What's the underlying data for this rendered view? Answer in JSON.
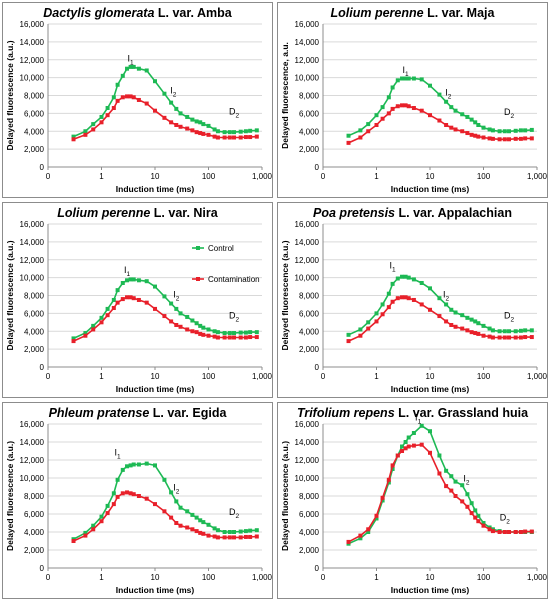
{
  "figure": {
    "legend": {
      "control": "Control",
      "contamination": "Contamination"
    }
  },
  "colors": {
    "control": "#1db954",
    "contamination": "#e8202a",
    "grid": "#d9d9d9",
    "axis": "#8c8c8c",
    "border": "#8c8c8c"
  },
  "chart_data": [
    {
      "type": "line",
      "title_italic": "Dactylis glomerata",
      "title_rest": " L. var. Amba",
      "xlabel": "Induction time (ms)",
      "ylabel": "Delayed fluorescence (a.u.)",
      "x_scale": "log",
      "xlim": [
        0.1,
        1000
      ],
      "ylim": [
        0,
        16000
      ],
      "x_ticks": [
        "0",
        "1",
        "10",
        "100",
        "1,000"
      ],
      "y_ticks": [
        "0",
        "2,000",
        "4,000",
        "6,000",
        "8,000",
        "10,000",
        "12,000",
        "14,000",
        "16,000"
      ],
      "x": [
        0.3,
        0.5,
        0.7,
        1,
        1.3,
        1.7,
        2,
        2.5,
        3,
        3.5,
        4,
        5,
        7,
        10,
        15,
        20,
        25,
        30,
        40,
        50,
        60,
        70,
        80,
        100,
        130,
        150,
        200,
        250,
        300,
        400,
        500,
        600,
        800
      ],
      "series": [
        {
          "name": "Control",
          "values": [
            3400,
            4000,
            4800,
            5600,
            6600,
            7800,
            9200,
            10200,
            11000,
            11200,
            11200,
            11000,
            10800,
            9600,
            8200,
            7200,
            6500,
            6000,
            5600,
            5300,
            5100,
            5000,
            4800,
            4600,
            4200,
            4000,
            3900,
            3900,
            3900,
            3950,
            4000,
            4050,
            4100
          ]
        },
        {
          "name": "Contamination",
          "values": [
            3100,
            3600,
            4200,
            5000,
            5800,
            6600,
            7400,
            7800,
            7900,
            7900,
            7800,
            7500,
            7100,
            6300,
            5500,
            5000,
            4700,
            4500,
            4300,
            4100,
            3900,
            3800,
            3700,
            3600,
            3400,
            3300,
            3300,
            3300,
            3300,
            3300,
            3350,
            3350,
            3400
          ]
        }
      ],
      "annotations": [
        {
          "base": "I",
          "sub": "1",
          "x": 3.5,
          "y": 11800
        },
        {
          "base": "I",
          "sub": "2",
          "x": 22,
          "y": 8200
        },
        {
          "base": "D",
          "sub": "2",
          "x": 300,
          "y": 5900
        }
      ]
    },
    {
      "type": "line",
      "title_italic": "Lolium perenne",
      "title_rest": " L. var. Maja",
      "xlabel": "Induction time (ms)",
      "ylabel": "Delayed fluorescence, a.u.",
      "x_scale": "log",
      "xlim": [
        0.1,
        1000
      ],
      "ylim": [
        0,
        16000
      ],
      "x_ticks": [
        "0",
        "1",
        "10",
        "100",
        "1,000"
      ],
      "y_ticks": [
        "0",
        "2,000",
        "4,000",
        "6,000",
        "8,000",
        "10,000",
        "12,000",
        "14,000",
        "16,000"
      ],
      "x": [
        0.3,
        0.5,
        0.7,
        1,
        1.3,
        1.7,
        2,
        2.5,
        3,
        3.5,
        4,
        5,
        7,
        10,
        15,
        20,
        25,
        30,
        40,
        50,
        60,
        70,
        80,
        100,
        130,
        150,
        200,
        250,
        300,
        400,
        500,
        600,
        800
      ],
      "series": [
        {
          "name": "Control",
          "values": [
            3500,
            4100,
            4800,
            5800,
            6700,
            7800,
            8900,
            9700,
            9900,
            9900,
            9900,
            9900,
            9800,
            9100,
            8100,
            7300,
            6700,
            6300,
            5900,
            5600,
            5300,
            5000,
            4700,
            4400,
            4200,
            4100,
            4000,
            4000,
            4000,
            4050,
            4100,
            4100,
            4150
          ]
        },
        {
          "name": "Contamination",
          "values": [
            2700,
            3300,
            4000,
            4700,
            5400,
            6000,
            6500,
            6800,
            6900,
            6900,
            6800,
            6600,
            6300,
            5800,
            5200,
            4700,
            4400,
            4200,
            4000,
            3800,
            3600,
            3500,
            3400,
            3300,
            3200,
            3150,
            3100,
            3100,
            3100,
            3150,
            3150,
            3200,
            3200
          ]
        }
      ],
      "annotations": [
        {
          "base": "I",
          "sub": "1",
          "x": 3.5,
          "y": 10500
        },
        {
          "base": "I",
          "sub": "2",
          "x": 22,
          "y": 8000
        },
        {
          "base": "D",
          "sub": "2",
          "x": 300,
          "y": 5800
        }
      ]
    },
    {
      "type": "line",
      "title_italic": "Lolium perenne",
      "title_rest": " L. var. Nira",
      "xlabel": "Induction time (ms)",
      "ylabel": "Delayed fluorescence (a.u.)",
      "x_scale": "log",
      "xlim": [
        0.1,
        1000
      ],
      "ylim": [
        0,
        16000
      ],
      "x_ticks": [
        "0",
        "1",
        "10",
        "100",
        "1,000"
      ],
      "y_ticks": [
        "0",
        "2,000",
        "4,000",
        "6,000",
        "8,000",
        "10,000",
        "12,000",
        "14,000",
        "16,000"
      ],
      "x": [
        0.3,
        0.5,
        0.7,
        1,
        1.3,
        1.7,
        2,
        2.5,
        3,
        3.5,
        4,
        5,
        7,
        10,
        15,
        20,
        25,
        30,
        40,
        50,
        60,
        70,
        80,
        100,
        130,
        150,
        200,
        250,
        300,
        400,
        500,
        600,
        800
      ],
      "series": [
        {
          "name": "Control",
          "values": [
            3200,
            3800,
            4600,
            5500,
            6500,
            7500,
            8600,
            9400,
            9700,
            9800,
            9800,
            9700,
            9600,
            9000,
            7900,
            7100,
            6500,
            6000,
            5600,
            5200,
            4900,
            4600,
            4400,
            4200,
            4000,
            3900,
            3800,
            3800,
            3800,
            3850,
            3850,
            3900,
            3900
          ]
        },
        {
          "name": "Contamination",
          "values": [
            2900,
            3500,
            4200,
            5000,
            5800,
            6600,
            7200,
            7600,
            7800,
            7800,
            7700,
            7500,
            7200,
            6500,
            5700,
            5100,
            4700,
            4500,
            4200,
            4000,
            3900,
            3700,
            3600,
            3500,
            3400,
            3300,
            3300,
            3300,
            3300,
            3300,
            3300,
            3350,
            3350
          ]
        }
      ],
      "annotations": [
        {
          "base": "I",
          "sub": "1",
          "x": 3.0,
          "y": 10500
        },
        {
          "base": "I",
          "sub": "2",
          "x": 25,
          "y": 7800
        },
        {
          "base": "D",
          "sub": "2",
          "x": 300,
          "y": 5400
        }
      ]
    },
    {
      "type": "line",
      "title_italic": "Poa pretensis",
      "title_rest": " L. var. Appalachian",
      "xlabel": "Induction time (ms)",
      "ylabel": "Delayed fluorescence (a.u.)",
      "x_scale": "log",
      "xlim": [
        0.1,
        1000
      ],
      "ylim": [
        0,
        16000
      ],
      "x_ticks": [
        "0",
        "1",
        "10",
        "100",
        "1,000"
      ],
      "y_ticks": [
        "0",
        "2,000",
        "4,000",
        "6,000",
        "8,000",
        "10,000",
        "12,000",
        "14,000",
        "16,000"
      ],
      "x": [
        0.3,
        0.5,
        0.7,
        1,
        1.3,
        1.7,
        2,
        2.5,
        3,
        3.5,
        4,
        5,
        7,
        10,
        15,
        20,
        25,
        30,
        40,
        50,
        60,
        70,
        80,
        100,
        130,
        150,
        200,
        250,
        300,
        400,
        500,
        600,
        800
      ],
      "series": [
        {
          "name": "Control",
          "values": [
            3600,
            4200,
            5000,
            6000,
            7000,
            8200,
            9300,
            9900,
            10100,
            10100,
            10000,
            9800,
            9400,
            8800,
            7700,
            7000,
            6400,
            6100,
            5800,
            5500,
            5300,
            5100,
            4900,
            4600,
            4300,
            4100,
            4000,
            4000,
            4000,
            4000,
            4050,
            4100,
            4100
          ]
        },
        {
          "name": "Contamination",
          "values": [
            2900,
            3500,
            4300,
            5100,
            5900,
            6700,
            7300,
            7700,
            7800,
            7800,
            7700,
            7500,
            7000,
            6400,
            5700,
            5100,
            4700,
            4500,
            4300,
            4100,
            3900,
            3800,
            3700,
            3500,
            3400,
            3300,
            3300,
            3300,
            3300,
            3300,
            3300,
            3350,
            3350
          ]
        }
      ],
      "annotations": [
        {
          "base": "I",
          "sub": "1",
          "x": 2.0,
          "y": 11000
        },
        {
          "base": "I",
          "sub": "2",
          "x": 20,
          "y": 7800
        },
        {
          "base": "D",
          "sub": "2",
          "x": 300,
          "y": 5400
        }
      ]
    },
    {
      "type": "line",
      "title_italic": "Phleum pratense",
      "title_rest": " L. var. Egida",
      "xlabel": "Induction time (ms)",
      "ylabel": "Delayed fluorescence (a.u.)",
      "x_scale": "log",
      "xlim": [
        0.1,
        1000
      ],
      "ylim": [
        0,
        16000
      ],
      "x_ticks": [
        "0",
        "1",
        "10",
        "100",
        "1,000"
      ],
      "y_ticks": [
        "0",
        "2,000",
        "4,000",
        "6,000",
        "8,000",
        "10,000",
        "12,000",
        "14,000",
        "16,000"
      ],
      "x": [
        0.3,
        0.5,
        0.7,
        1,
        1.3,
        1.7,
        2,
        2.5,
        3,
        3.5,
        4,
        5,
        7,
        10,
        15,
        20,
        25,
        30,
        40,
        50,
        60,
        70,
        80,
        100,
        130,
        150,
        200,
        250,
        300,
        400,
        500,
        600,
        800
      ],
      "series": [
        {
          "name": "Control",
          "values": [
            3200,
            3900,
            4700,
            5700,
            6900,
            8300,
            9800,
            10900,
            11300,
            11400,
            11500,
            11500,
            11600,
            11400,
            9800,
            8400,
            7400,
            6700,
            6300,
            5900,
            5600,
            5300,
            5100,
            4800,
            4400,
            4200,
            4000,
            4000,
            4000,
            4050,
            4100,
            4150,
            4200
          ]
        },
        {
          "name": "Contamination",
          "values": [
            3000,
            3600,
            4300,
            5200,
            6100,
            7100,
            7900,
            8300,
            8400,
            8300,
            8200,
            8000,
            7700,
            7100,
            6300,
            5600,
            5000,
            4700,
            4500,
            4300,
            4100,
            3900,
            3800,
            3600,
            3500,
            3400,
            3400,
            3400,
            3400,
            3400,
            3450,
            3450,
            3500
          ]
        }
      ],
      "annotations": [
        {
          "base": "I",
          "sub": "1",
          "x": 2.0,
          "y": 12500
        },
        {
          "base": "I",
          "sub": "2",
          "x": 25,
          "y": 8600
        },
        {
          "base": "D",
          "sub": "2",
          "x": 300,
          "y": 5900
        }
      ]
    },
    {
      "type": "line",
      "title_italic": "Trifolium repens",
      "title_rest": " L. var. Grassland huia",
      "xlabel": "Induction time (ms)",
      "ylabel": "Delayed fluorescence (a.u.)",
      "x_scale": "log",
      "xlim": [
        0.1,
        1000
      ],
      "ylim": [
        0,
        16000
      ],
      "x_ticks": [
        "0",
        "1",
        "10",
        "100",
        "1,000"
      ],
      "y_ticks": [
        "0",
        "2,000",
        "4,000",
        "6,000",
        "8,000",
        "10,000",
        "12,000",
        "14,000",
        "16,000"
      ],
      "x": [
        0.3,
        0.5,
        0.7,
        1,
        1.3,
        1.7,
        2,
        2.5,
        3,
        3.5,
        4,
        5,
        7,
        10,
        15,
        20,
        25,
        30,
        40,
        50,
        60,
        70,
        80,
        100,
        130,
        150,
        200,
        250,
        300,
        400,
        500,
        600,
        800
      ],
      "series": [
        {
          "name": "Control",
          "values": [
            2700,
            3300,
            4000,
            5500,
            7500,
            9500,
            11000,
            12500,
            13500,
            14000,
            14500,
            15000,
            15800,
            15200,
            12500,
            10800,
            10200,
            9600,
            9200,
            8200,
            7200,
            6400,
            5800,
            5000,
            4500,
            4300,
            4100,
            4000,
            4000,
            4000,
            4000,
            4000,
            4000
          ]
        },
        {
          "name": "Contamination",
          "values": [
            2900,
            3600,
            4300,
            5800,
            7800,
            9800,
            11400,
            12500,
            13000,
            13300,
            13500,
            13600,
            13700,
            12800,
            10500,
            9100,
            8600,
            8000,
            7400,
            6800,
            6100,
            5600,
            5200,
            4700,
            4300,
            4100,
            4000,
            4000,
            4000,
            4000,
            4000,
            4050,
            4050
          ]
        }
      ],
      "annotations": [
        {
          "base": "I",
          "sub": "1",
          "x": 6.0,
          "y": 16400
        },
        {
          "base": "I",
          "sub": "2",
          "x": 48,
          "y": 9600
        },
        {
          "base": "D",
          "sub": "2",
          "x": 250,
          "y": 5300
        }
      ]
    }
  ]
}
